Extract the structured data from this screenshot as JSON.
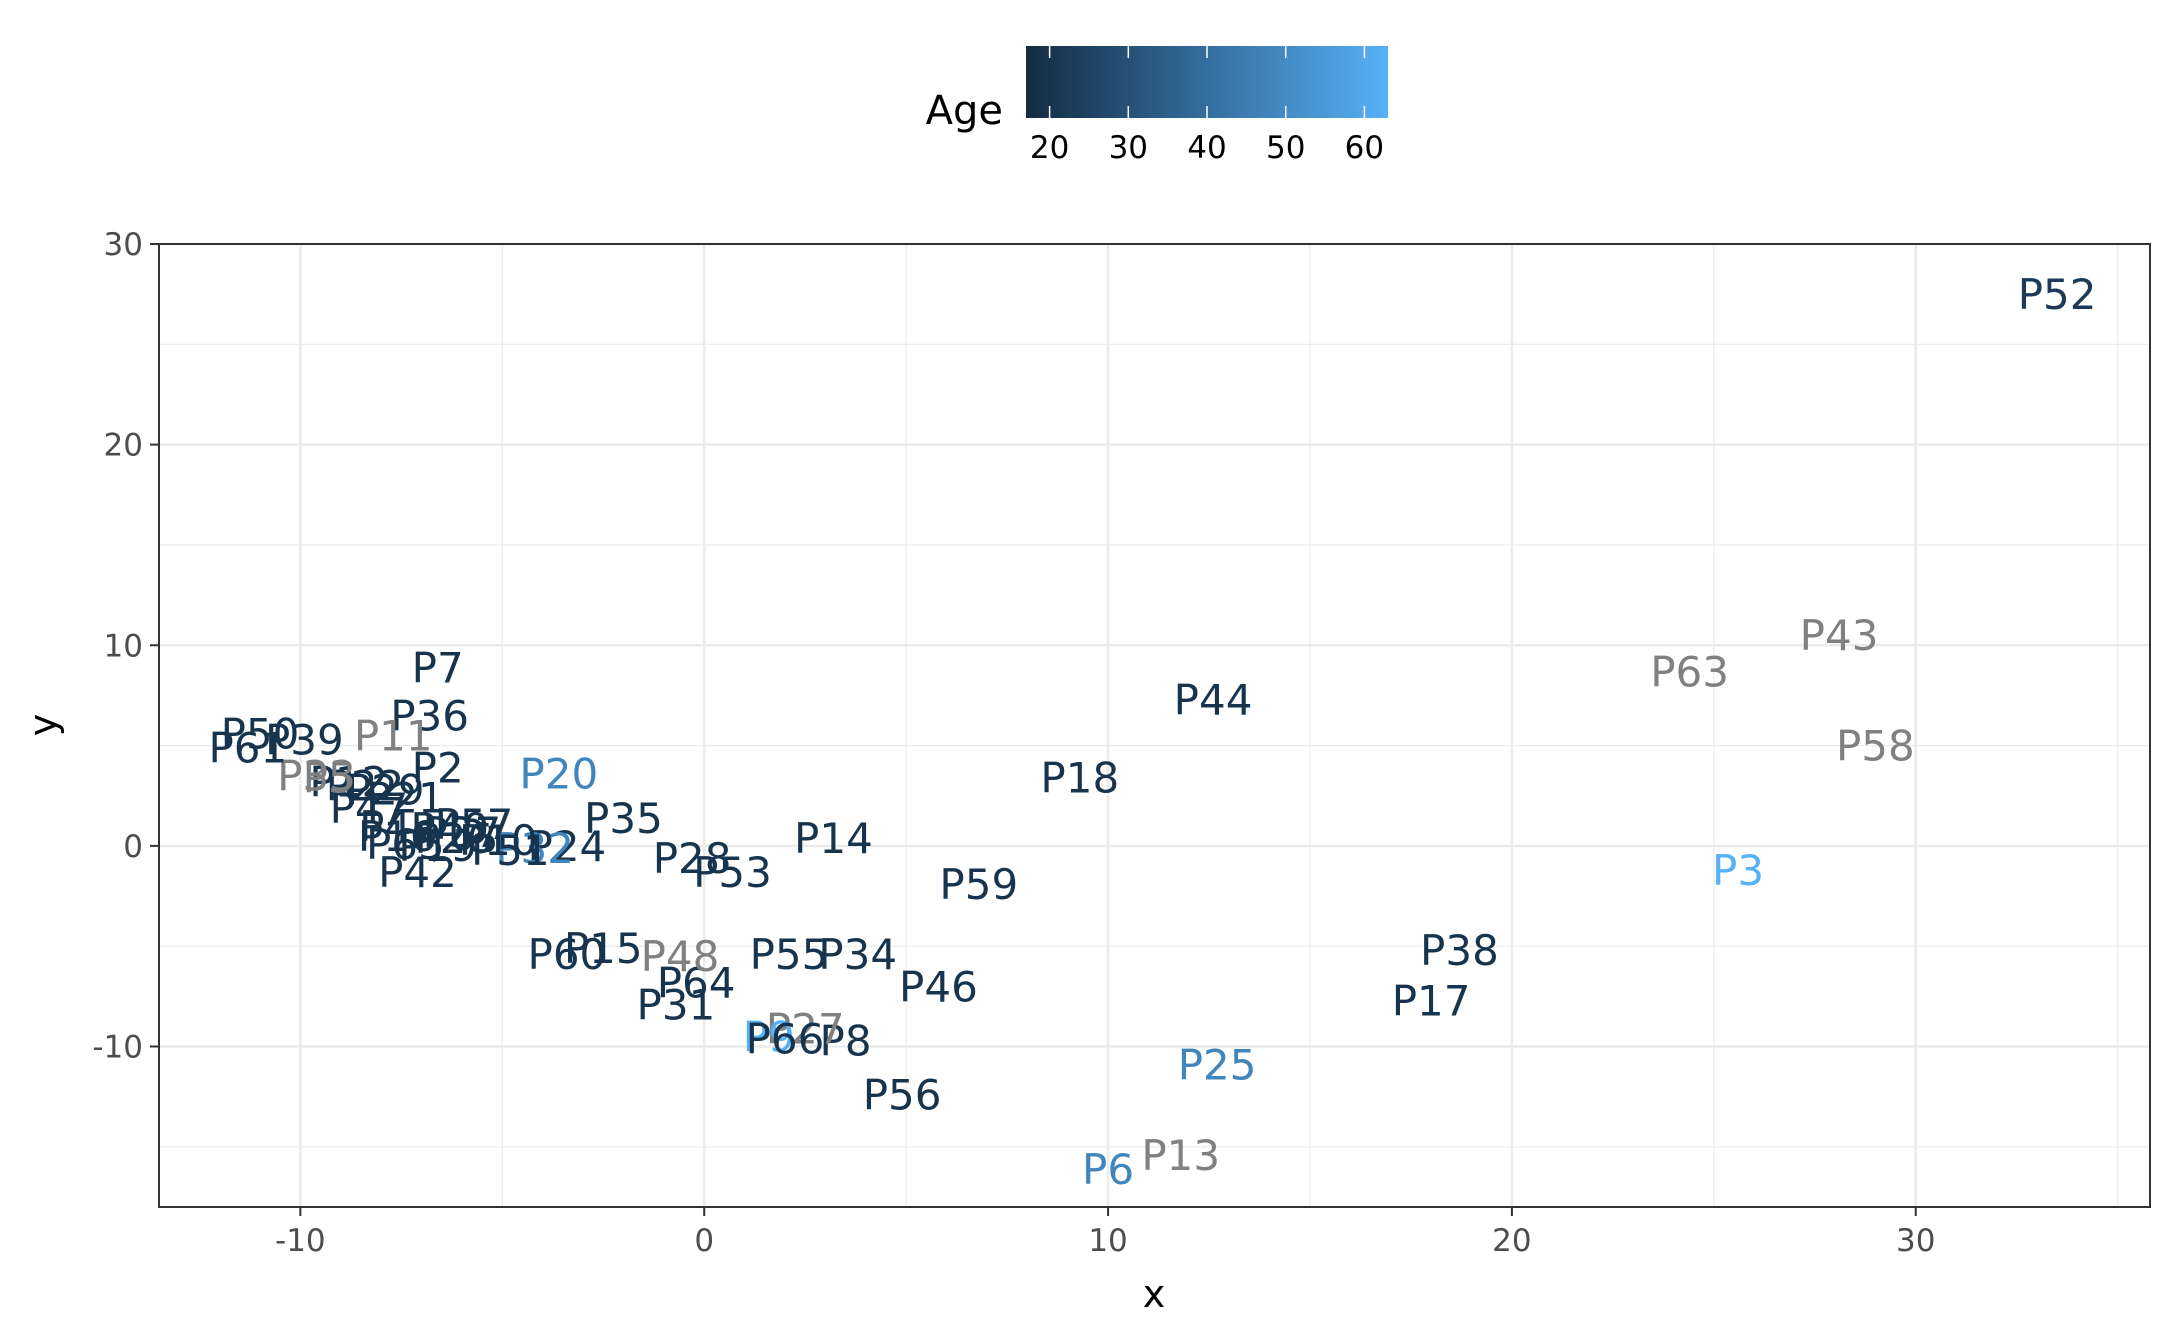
{
  "chart_data": {
    "type": "scatter",
    "marker": "text-label",
    "title": "",
    "xlabel": "x",
    "ylabel": "y",
    "xlim": [
      -13.5,
      35.8
    ],
    "ylim": [
      -18.0,
      30.0
    ],
    "x_ticks": [
      -10,
      0,
      10,
      20,
      30
    ],
    "y_ticks": [
      -10,
      0,
      10,
      20,
      30
    ],
    "x_tick_labels": [
      "-10",
      "0",
      "10",
      "20",
      "30"
    ],
    "y_tick_labels": [
      "-10",
      "0",
      "10",
      "20",
      "30"
    ],
    "grid": true,
    "legend": {
      "title": "Age",
      "position": "top",
      "type": "colorbar",
      "min": 17,
      "max": 63,
      "ticks": [
        20,
        30,
        40,
        50,
        60
      ],
      "tick_labels": [
        "20",
        "30",
        "40",
        "50",
        "60"
      ],
      "low_color": "#132B43",
      "high_color": "#56B1F7",
      "na_color": "#808080"
    },
    "points": [
      {
        "label": "P52",
        "x": 33.5,
        "y": 27.5,
        "age": 22
      },
      {
        "label": "P43",
        "x": 28.1,
        "y": 10.5,
        "age": null
      },
      {
        "label": "P63",
        "x": 24.4,
        "y": 8.7,
        "age": null
      },
      {
        "label": "P58",
        "x": 29.0,
        "y": 5.0,
        "age": null
      },
      {
        "label": "P3",
        "x": 25.6,
        "y": -1.2,
        "age": 63
      },
      {
        "label": "P44",
        "x": 12.6,
        "y": 7.3,
        "age": 20
      },
      {
        "label": "P18",
        "x": 9.3,
        "y": 3.4,
        "age": 20
      },
      {
        "label": "P38",
        "x": 18.7,
        "y": -5.2,
        "age": 20
      },
      {
        "label": "P17",
        "x": 18.0,
        "y": -7.7,
        "age": 20
      },
      {
        "label": "P25",
        "x": 12.7,
        "y": -10.9,
        "age": 48
      },
      {
        "label": "P13",
        "x": 11.8,
        "y": -15.4,
        "age": null
      },
      {
        "label": "P6",
        "x": 10.0,
        "y": -16.1,
        "age": 48
      },
      {
        "label": "P59",
        "x": 6.8,
        "y": -1.9,
        "age": 20
      },
      {
        "label": "P46",
        "x": 5.8,
        "y": -7.0,
        "age": 20
      },
      {
        "label": "P56",
        "x": 4.9,
        "y": -12.4,
        "age": 20
      },
      {
        "label": "P14",
        "x": 3.2,
        "y": 0.4,
        "age": 20
      },
      {
        "label": "P53",
        "x": 0.7,
        "y": -1.3,
        "age": 20
      },
      {
        "label": "P28",
        "x": -0.3,
        "y": -0.6,
        "age": 20
      },
      {
        "label": "P34",
        "x": 3.8,
        "y": -5.4,
        "age": 20
      },
      {
        "label": "P55",
        "x": 2.1,
        "y": -5.4,
        "age": 20
      },
      {
        "label": "P8",
        "x": 3.5,
        "y": -9.7,
        "age": 20
      },
      {
        "label": "P27",
        "x": 2.5,
        "y": -9.1,
        "age": null
      },
      {
        "label": "P9",
        "x": 1.6,
        "y": -9.5,
        "age": 63
      },
      {
        "label": "P66",
        "x": 2.0,
        "y": -9.6,
        "age": 20
      },
      {
        "label": "P64",
        "x": -0.2,
        "y": -6.8,
        "age": 20
      },
      {
        "label": "P31",
        "x": -0.7,
        "y": -7.9,
        "age": 20
      },
      {
        "label": "P48",
        "x": -0.6,
        "y": -5.5,
        "age": null
      },
      {
        "label": "P15",
        "x": -2.5,
        "y": -5.1,
        "age": 20
      },
      {
        "label": "P60",
        "x": -3.4,
        "y": -5.4,
        "age": 20
      },
      {
        "label": "P35",
        "x": -2.0,
        "y": 1.4,
        "age": 20
      },
      {
        "label": "P20",
        "x": -3.6,
        "y": 3.6,
        "age": 48
      },
      {
        "label": "P24",
        "x": -3.4,
        "y": 0.0,
        "age": 20
      },
      {
        "label": "P32",
        "x": -4.2,
        "y": -0.1,
        "age": 48
      },
      {
        "label": "P51",
        "x": -4.8,
        "y": -0.2,
        "age": 20
      },
      {
        "label": "P10",
        "x": -5.1,
        "y": 0.3,
        "age": 20
      },
      {
        "label": "P57",
        "x": -5.7,
        "y": 1.1,
        "age": 20
      },
      {
        "label": "P37",
        "x": -6.0,
        "y": 0.7,
        "age": 20
      },
      {
        "label": "P26",
        "x": -6.2,
        "y": 0.4,
        "age": 20
      },
      {
        "label": "P19",
        "x": -6.6,
        "y": 0.0,
        "age": 20
      },
      {
        "label": "P40",
        "x": -6.3,
        "y": 0.9,
        "age": 20
      },
      {
        "label": "P42",
        "x": -7.1,
        "y": -1.3,
        "age": 20
      },
      {
        "label": "P65",
        "x": -7.4,
        "y": 0.1,
        "age": 20
      },
      {
        "label": "P16",
        "x": -7.6,
        "y": 0.5,
        "age": 20
      },
      {
        "label": "P4",
        "x": -7.9,
        "y": 1.0,
        "age": 20
      },
      {
        "label": "P47",
        "x": -8.3,
        "y": 1.9,
        "age": 20
      },
      {
        "label": "P21",
        "x": -7.4,
        "y": 2.4,
        "age": 20
      },
      {
        "label": "P29",
        "x": -7.9,
        "y": 2.8,
        "age": 20
      },
      {
        "label": "P22",
        "x": -8.4,
        "y": 3.0,
        "age": 20
      },
      {
        "label": "P12",
        "x": -8.8,
        "y": 3.2,
        "age": 20
      },
      {
        "label": "P5",
        "x": -9.3,
        "y": 3.4,
        "age": null
      },
      {
        "label": "P33",
        "x": -9.6,
        "y": 3.5,
        "age": null
      },
      {
        "label": "P2",
        "x": -6.6,
        "y": 3.9,
        "age": 20
      },
      {
        "label": "P36",
        "x": -6.8,
        "y": 6.5,
        "age": 20
      },
      {
        "label": "P7",
        "x": -6.6,
        "y": 8.9,
        "age": 20
      },
      {
        "label": "P11",
        "x": -7.7,
        "y": 5.5,
        "age": null
      },
      {
        "label": "P39",
        "x": -9.9,
        "y": 5.3,
        "age": 20
      },
      {
        "label": "P50",
        "x": -11.0,
        "y": 5.6,
        "age": 20
      },
      {
        "label": "P61",
        "x": -11.3,
        "y": 4.9,
        "age": 20
      }
    ]
  }
}
